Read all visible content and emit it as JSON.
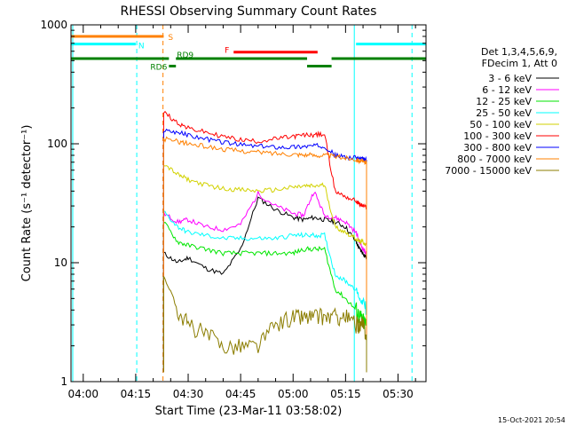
{
  "chart_data": {
    "type": "line",
    "title": "RHESSI Observing Summary Count Rates",
    "xlabel": "Start Time (23-Mar-11 03:58:02)",
    "ylabel": "Count Rate (s⁻¹ detector⁻¹)",
    "yscale": "log",
    "ylim": [
      1,
      1000
    ],
    "xlim_minutes_since_0400": [
      -3.5,
      98
    ],
    "x_ticks": [
      {
        "m": 0,
        "label": "04:00"
      },
      {
        "m": 15,
        "label": "04:15"
      },
      {
        "m": 30,
        "label": "04:30"
      },
      {
        "m": 45,
        "label": "04:45"
      },
      {
        "m": 60,
        "label": "05:00"
      },
      {
        "m": 75,
        "label": "05:15"
      },
      {
        "m": 90,
        "label": "05:30"
      }
    ],
    "y_ticks": [
      {
        "v": 1,
        "label": "1"
      },
      {
        "v": 10,
        "label": "10"
      },
      {
        "v": 100,
        "label": "100"
      },
      {
        "v": 1000,
        "label": "1000"
      }
    ],
    "legend_header": [
      "Det 1,3,4,5,6,9,",
      "FDecim 1, Att 0"
    ],
    "series": [
      {
        "name": "3 - 6 keV",
        "color": "#000000",
        "t": [
          23,
          27,
          30,
          35,
          40,
          45,
          50,
          55,
          60,
          63,
          66,
          69,
          72,
          75,
          78,
          79,
          80,
          81
        ],
        "y": [
          12,
          10,
          11,
          9,
          8,
          13,
          35,
          28,
          24,
          23,
          24,
          23,
          22,
          20,
          15,
          13,
          12,
          11
        ]
      },
      {
        "name": "6 - 12 keV",
        "color": "#ff00ff",
        "t": [
          23,
          27,
          30,
          35,
          40,
          45,
          50,
          55,
          60,
          63,
          66,
          69,
          72,
          75,
          78,
          79,
          80,
          81
        ],
        "y": [
          26,
          22,
          23,
          20,
          19,
          21,
          38,
          30,
          26,
          25,
          40,
          25,
          24,
          22,
          18,
          15,
          13,
          12
        ]
      },
      {
        "name": "12 - 25 keV",
        "color": "#00e600",
        "t": [
          23,
          27,
          30,
          35,
          40,
          45,
          50,
          55,
          60,
          63,
          66,
          69,
          72,
          75,
          78,
          79,
          80,
          81
        ],
        "y": [
          22,
          15,
          14,
          13,
          12,
          12,
          12,
          12,
          12,
          13,
          13,
          13,
          6,
          5,
          4,
          3.5,
          3.2,
          3
        ]
      },
      {
        "name": "25 - 50 keV",
        "color": "#00ffff",
        "t": [
          23,
          27,
          30,
          35,
          40,
          45,
          50,
          55,
          60,
          63,
          66,
          69,
          72,
          75,
          78,
          79,
          80,
          81
        ],
        "y": [
          27,
          20,
          18,
          17,
          16,
          16,
          16,
          16,
          17,
          17,
          17,
          17,
          8,
          7,
          6,
          5,
          4.5,
          4
        ]
      },
      {
        "name": "50 - 100 keV",
        "color": "#d2d200",
        "t": [
          23,
          27,
          30,
          35,
          40,
          45,
          50,
          55,
          60,
          63,
          66,
          69,
          72,
          75,
          78,
          79,
          80,
          81
        ],
        "y": [
          68,
          55,
          50,
          45,
          42,
          41,
          40,
          41,
          43,
          44,
          44,
          45,
          20,
          18,
          16,
          15,
          15,
          14
        ]
      },
      {
        "name": "100 - 300 keV",
        "color": "#ff0000",
        "t": [
          23,
          27,
          30,
          35,
          40,
          45,
          50,
          55,
          60,
          63,
          66,
          69,
          72,
          75,
          78,
          79,
          80,
          81
        ],
        "y": [
          185,
          150,
          135,
          125,
          115,
          108,
          105,
          110,
          115,
          118,
          119,
          120,
          40,
          36,
          33,
          31,
          30,
          29
        ]
      },
      {
        "name": "300 - 800 keV",
        "color": "#0000ff",
        "t": [
          23,
          27,
          30,
          35,
          40,
          45,
          50,
          55,
          60,
          63,
          66,
          69,
          72,
          75,
          78,
          79,
          80,
          81
        ],
        "y": [
          130,
          125,
          118,
          110,
          103,
          98,
          95,
          94,
          94,
          95,
          96,
          96,
          80,
          77,
          76,
          75,
          74,
          73
        ]
      },
      {
        "name": "800 - 7000 keV",
        "color": "#ff8000",
        "t": [
          23,
          27,
          30,
          35,
          40,
          45,
          50,
          55,
          60,
          63,
          66,
          69,
          72,
          75,
          78,
          79,
          80,
          81
        ],
        "y": [
          110,
          105,
          100,
          95,
          90,
          87,
          85,
          83,
          82,
          81,
          80,
          80,
          78,
          76,
          74,
          72,
          70,
          70
        ]
      },
      {
        "name": "7000 - 15000 keV",
        "color": "#8b7d00",
        "t": [
          23,
          27,
          30,
          35,
          40,
          45,
          50,
          55,
          60,
          63,
          66,
          69,
          72,
          75,
          78,
          79,
          80,
          81
        ],
        "y": [
          8,
          4,
          3,
          2.5,
          2,
          2,
          2,
          3,
          3.5,
          3.5,
          3.5,
          3.5,
          3.5,
          3.5,
          3,
          3,
          3,
          2.5
        ]
      }
    ],
    "flag_bars": [
      {
        "label": "S",
        "color": "#ff8000",
        "y": 800,
        "segments": [
          [
            -3.5,
            23
          ]
        ]
      },
      {
        "label": "N",
        "color": "#00ffff",
        "y": 690,
        "segments": [
          [
            -3.5,
            15
          ],
          [
            78,
            98
          ]
        ]
      },
      {
        "label": "F",
        "color": "#ff0000",
        "y": 590,
        "segments": [
          [
            43,
            67
          ]
        ]
      },
      {
        "label": "RD9",
        "color": "#008000",
        "y": 520,
        "segments": [
          [
            -3.5,
            24.5
          ],
          [
            26.5,
            64
          ],
          [
            71,
            98
          ]
        ]
      },
      {
        "label": "RD6",
        "color": "#008000",
        "y": 450,
        "segments": [
          [
            24.5,
            26.5
          ],
          [
            64,
            71
          ]
        ]
      }
    ],
    "vertical_markers": [
      {
        "t": -3,
        "color": "#00ffff",
        "style": "solid"
      },
      {
        "t": 15.3,
        "color": "#00ffff",
        "style": "dashed"
      },
      {
        "t": 22.8,
        "color": "#ff8000",
        "style": "dashed"
      },
      {
        "t": 77.5,
        "color": "#00ffff",
        "style": "solid"
      },
      {
        "t": 94,
        "color": "#00ffff",
        "style": "dashed"
      }
    ],
    "timestamp": "15-Oct-2021 20:54"
  }
}
